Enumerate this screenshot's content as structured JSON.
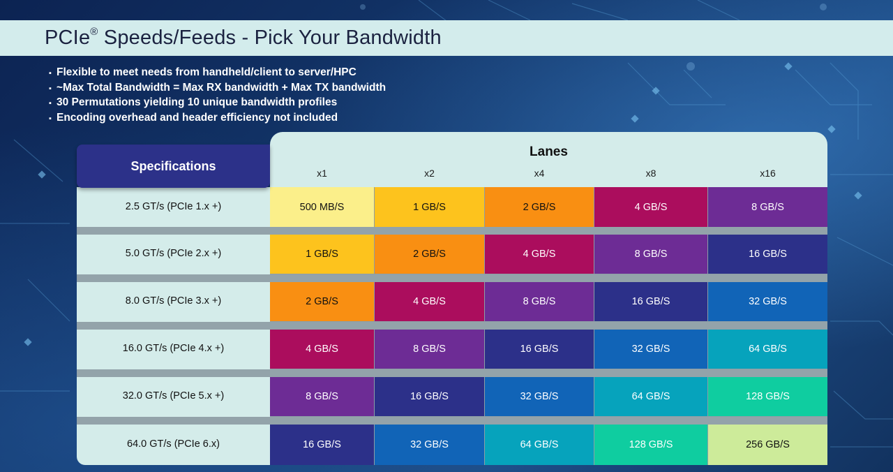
{
  "header": {
    "title_main": "PCIe",
    "title_mark": "®",
    "title_rest": " Speeds/Feeds - Pick Your Bandwidth"
  },
  "bullets": [
    "Flexible to meet needs from handheld/client to server/HPC",
    "~Max Total Bandwidth = Max RX bandwidth + Max TX bandwidth",
    "30 Permutations yielding 10 unique bandwidth profiles",
    "Encoding overhead and header efficiency not included"
  ],
  "table": {
    "spec_header": "Specifications",
    "lanes_header": "Lanes",
    "lanes": [
      "x1",
      "x2",
      "x4",
      "x8",
      "x16"
    ],
    "rows": [
      {
        "spec": "2.5 GT/s (PCIe 1.x +)",
        "cells": [
          "500 MB/S",
          "1 GB/S",
          "2 GB/S",
          "4 GB/S",
          "8 GB/S"
        ]
      },
      {
        "spec": "5.0 GT/s (PCIe 2.x +)",
        "cells": [
          "1 GB/S",
          "2 GB/S",
          "4 GB/S",
          "8 GB/S",
          "16 GB/S"
        ]
      },
      {
        "spec": "8.0 GT/s (PCIe 3.x +)",
        "cells": [
          "2 GB/S",
          "4 GB/S",
          "8 GB/S",
          "16 GB/S",
          "32 GB/S"
        ]
      },
      {
        "spec": "16.0 GT/s (PCIe 4.x +)",
        "cells": [
          "4 GB/S",
          "8 GB/S",
          "16 GB/S",
          "32 GB/S",
          "64 GB/S"
        ]
      },
      {
        "spec": "32.0 GT/s (PCIe 5.x +)",
        "cells": [
          "8 GB/S",
          "16 GB/S",
          "32 GB/S",
          "64 GB/S",
          "128 GB/S"
        ]
      },
      {
        "spec": "64.0 GT/s (PCIe 6.x)",
        "cells": [
          "16 GB/S",
          "32 GB/S",
          "64 GB/S",
          "128 GB/S",
          "256 GB/S"
        ]
      }
    ],
    "level_colors": {
      "500 MB/S": {
        "bg": "#fbef8a",
        "fg": "#111111"
      },
      "1 GB/S": {
        "bg": "#fdc31d",
        "fg": "#111111"
      },
      "2 GB/S": {
        "bg": "#f98f12",
        "fg": "#111111"
      },
      "4 GB/S": {
        "bg": "#ab0d5d",
        "fg": "#ffffff"
      },
      "8 GB/S": {
        "bg": "#6d2c95",
        "fg": "#ffffff"
      },
      "16 GB/S": {
        "bg": "#2c3089",
        "fg": "#ffffff"
      },
      "32 GB/S": {
        "bg": "#1164b7",
        "fg": "#ffffff"
      },
      "64 GB/S": {
        "bg": "#06a3bc",
        "fg": "#ffffff"
      },
      "128 GB/S": {
        "bg": "#0fcda0",
        "fg": "#ffffff"
      },
      "256 GB/S": {
        "bg": "#cdeb9a",
        "fg": "#111111"
      }
    }
  }
}
